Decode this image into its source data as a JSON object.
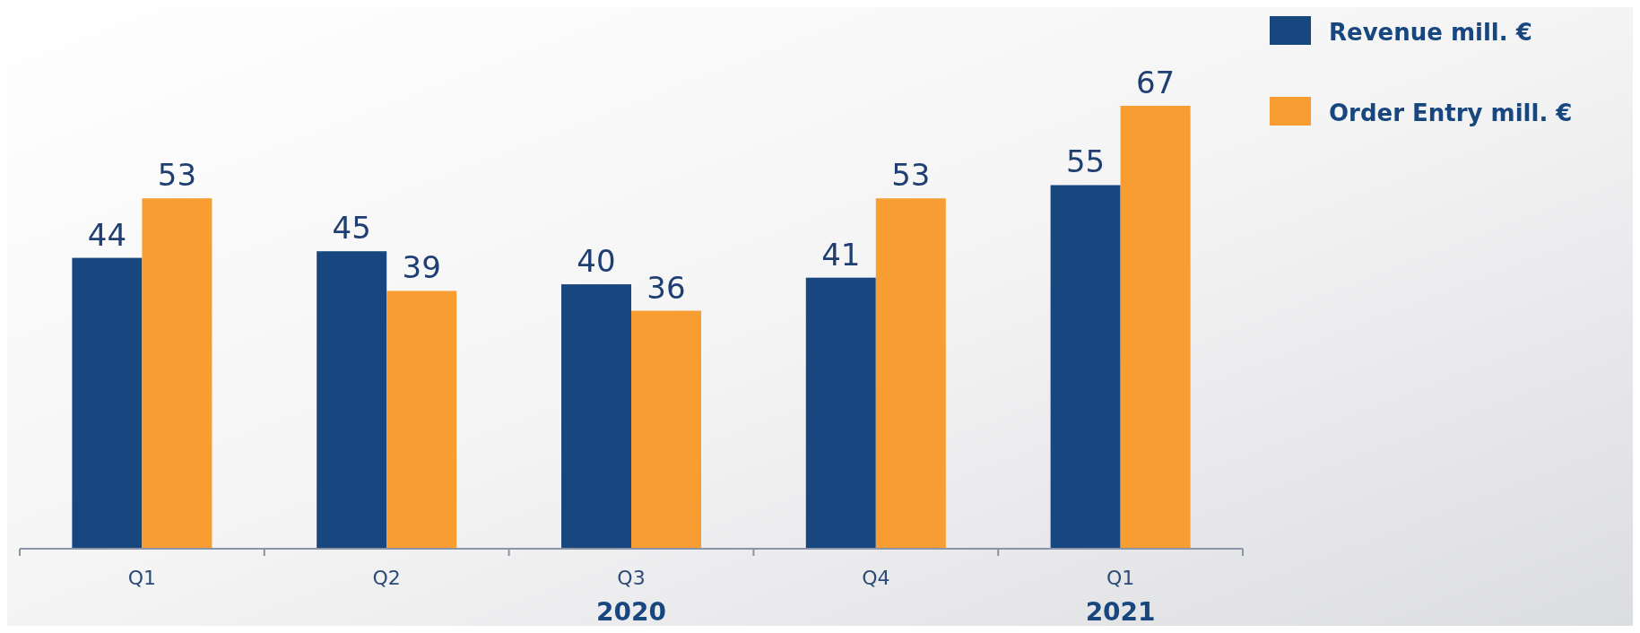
{
  "chart_data": {
    "type": "bar",
    "categories": [
      "Q1",
      "Q2",
      "Q3",
      "Q4",
      "Q1"
    ],
    "series": [
      {
        "name": "Revenue mill. €",
        "color": "#17477e",
        "values": [
          44,
          45,
          40,
          41,
          55
        ]
      },
      {
        "name": "Order Entry mill. €",
        "color": "#f79d32",
        "values": [
          53,
          39,
          36,
          53,
          67
        ]
      }
    ],
    "data_labels": true,
    "legend": "top right",
    "annotations": [
      "2020",
      "2021"
    ]
  }
}
